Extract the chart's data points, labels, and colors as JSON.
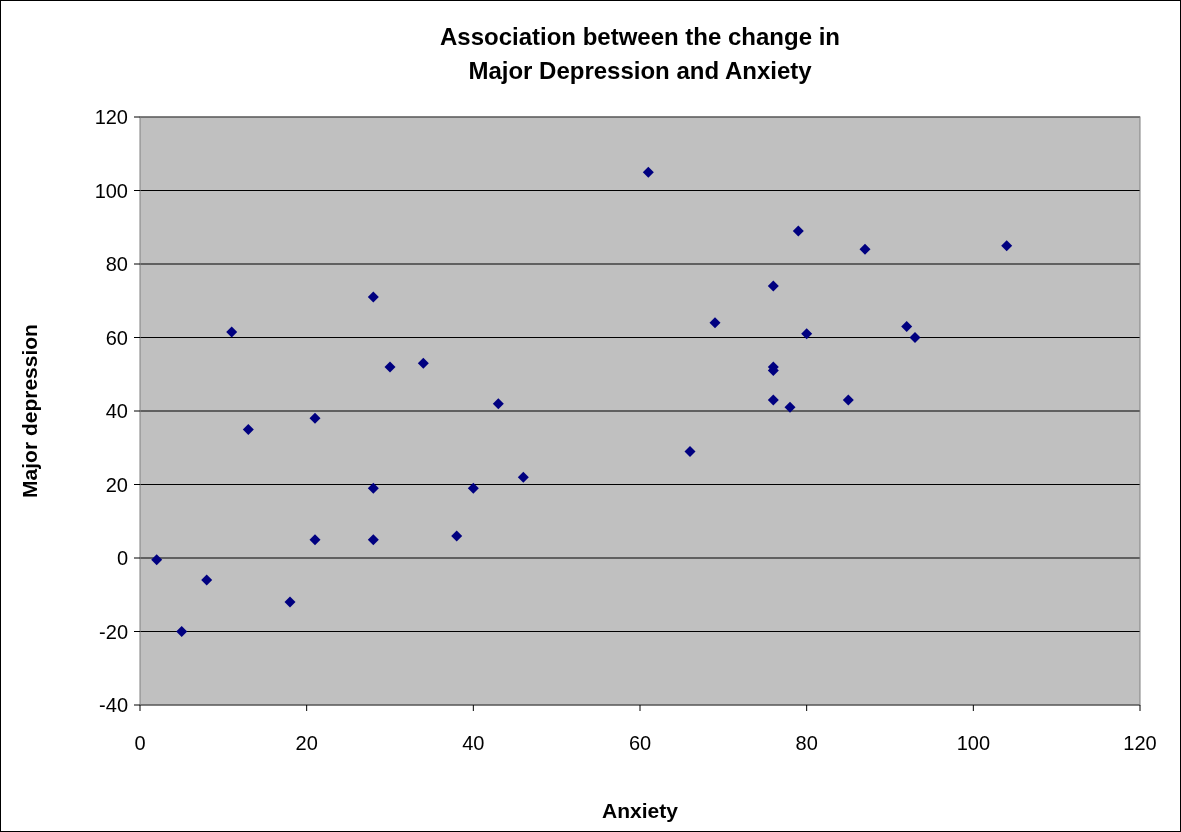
{
  "chart_data": {
    "type": "scatter",
    "title": "Association between the change in\nMajor Depression and Anxiety",
    "xlabel": "Anxiety",
    "ylabel": "Major depression",
    "x": [
      2,
      5,
      8,
      11,
      13,
      18,
      21,
      21,
      28,
      28,
      28,
      30,
      34,
      38,
      40,
      43,
      46,
      61,
      66,
      69,
      76,
      76,
      76,
      76,
      78,
      79,
      80,
      85,
      87,
      92,
      93,
      104
    ],
    "series": [
      {
        "color": "#000080",
        "values": [
          -0.5,
          -20,
          -6,
          61.5,
          35,
          -12,
          38,
          5,
          71,
          19,
          5,
          52,
          53,
          6,
          19,
          42,
          22,
          105,
          29,
          64,
          74,
          52,
          51,
          43,
          41,
          89,
          61,
          43,
          84,
          63,
          60,
          85
        ]
      }
    ],
    "xlim": [
      0,
      120
    ],
    "xticks": [
      0,
      20,
      40,
      60,
      80,
      100,
      120
    ],
    "ylim": [
      -40,
      120
    ],
    "yticks": [
      -40,
      -20,
      0,
      20,
      40,
      60,
      80,
      100,
      120
    ],
    "grid": "y",
    "marker": "diamond"
  }
}
